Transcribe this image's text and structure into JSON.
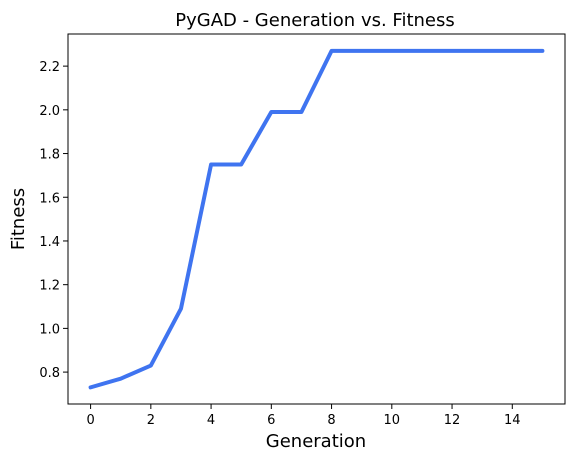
{
  "chart_data": {
    "type": "line",
    "title": "PyGAD - Generation vs. Fitness",
    "xlabel": "Generation",
    "ylabel": "Fitness",
    "xlim": [
      -0.75,
      15.75
    ],
    "ylim": [
      0.654,
      2.347
    ],
    "x": [
      0,
      1,
      2,
      3,
      4,
      5,
      6,
      7,
      8,
      9,
      10,
      11,
      12,
      13,
      14,
      15
    ],
    "series": [
      {
        "values": [
          0.73,
          0.77,
          0.83,
          1.09,
          1.75,
          1.75,
          1.99,
          1.99,
          2.27,
          2.27,
          2.27,
          2.27,
          2.27,
          2.27,
          2.27,
          2.27
        ]
      }
    ],
    "xticks": [
      0,
      2,
      4,
      6,
      8,
      10,
      12,
      14
    ],
    "xtick_labels": [
      "0",
      "2",
      "4",
      "6",
      "8",
      "10",
      "12",
      "14"
    ],
    "yticks": [
      0.8,
      1.0,
      1.2,
      1.4,
      1.6,
      1.8,
      2.0,
      2.2
    ],
    "ytick_labels": [
      "0.8",
      "1.0",
      "1.2",
      "1.4",
      "1.6",
      "1.8",
      "2.0",
      "2.2"
    ],
    "grid": false,
    "line_color": "#3f74f0"
  }
}
